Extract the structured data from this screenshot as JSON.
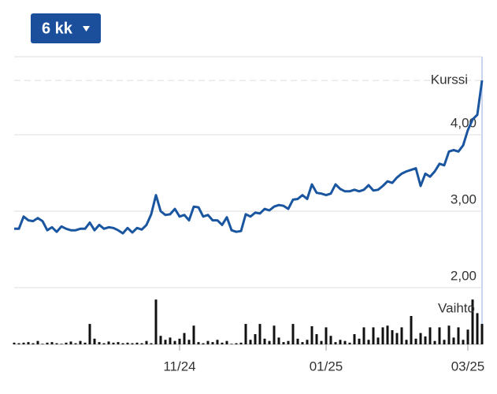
{
  "button": {
    "label": "6 kk"
  },
  "chart_data": [
    {
      "type": "line",
      "series": [
        {
          "name": "Kurssi",
          "color": "#1a56a0",
          "values": [
            2.77,
            2.77,
            2.93,
            2.88,
            2.87,
            2.91,
            2.87,
            2.75,
            2.79,
            2.73,
            2.8,
            2.77,
            2.75,
            2.75,
            2.77,
            2.77,
            2.85,
            2.75,
            2.82,
            2.77,
            2.79,
            2.78,
            2.75,
            2.71,
            2.78,
            2.72,
            2.78,
            2.76,
            2.82,
            2.96,
            3.21,
            3.0,
            2.95,
            2.96,
            3.03,
            2.93,
            2.95,
            2.88,
            3.06,
            3.05,
            2.93,
            2.95,
            2.88,
            2.88,
            2.82,
            2.92,
            2.75,
            2.73,
            2.74,
            2.96,
            2.93,
            2.98,
            2.97,
            3.03,
            3.01,
            3.06,
            3.08,
            3.07,
            3.03,
            3.15,
            3.16,
            3.21,
            3.16,
            3.35,
            3.24,
            3.23,
            3.21,
            3.23,
            3.35,
            3.29,
            3.26,
            3.26,
            3.28,
            3.26,
            3.28,
            3.34,
            3.27,
            3.28,
            3.33,
            3.39,
            3.37,
            3.44,
            3.49,
            3.52,
            3.54,
            3.56,
            3.33,
            3.49,
            3.45,
            3.52,
            3.62,
            3.6,
            3.78,
            3.8,
            3.78,
            3.86,
            4.06,
            4.2,
            4.26,
            4.71
          ]
        }
      ],
      "xlim": [
        0,
        99
      ],
      "ylim": [
        2.0,
        5.02
      ],
      "yticks": [
        {
          "value": 2,
          "label": "2,00"
        },
        {
          "value": 3,
          "label": "3,00"
        },
        {
          "value": 4,
          "label": "4,00"
        }
      ],
      "grid": true,
      "last_value_line": true
    },
    {
      "type": "bar",
      "series": [
        {
          "name": "Vaihto",
          "color": "#111111",
          "values": [
            3,
            2,
            3,
            4,
            2,
            6,
            1,
            3,
            4,
            2,
            1,
            3,
            5,
            2,
            6,
            3,
            36,
            10,
            4,
            2,
            5,
            3,
            4,
            2,
            3,
            2,
            3,
            2,
            6,
            2,
            79,
            15,
            8,
            12,
            6,
            10,
            20,
            8,
            33,
            4,
            2,
            6,
            4,
            8,
            3,
            6,
            1,
            2,
            3,
            36,
            8,
            18,
            36,
            10,
            6,
            33,
            12,
            4,
            6,
            36,
            10,
            4,
            8,
            32,
            18,
            6,
            30,
            15,
            4,
            8,
            6,
            3,
            18,
            10,
            30,
            8,
            30,
            12,
            30,
            33,
            25,
            20,
            30,
            8,
            50,
            10,
            20,
            14,
            30,
            6,
            30,
            8,
            33,
            12,
            30,
            8,
            26,
            79,
            55,
            36
          ]
        }
      ],
      "xlim": [
        0,
        99
      ],
      "ylim": [
        0,
        100
      ],
      "xticks": [
        {
          "value": 35,
          "label": "11/24"
        },
        {
          "value": 66,
          "label": "01/25"
        },
        {
          "value": 96,
          "label": "03/25"
        }
      ]
    }
  ]
}
